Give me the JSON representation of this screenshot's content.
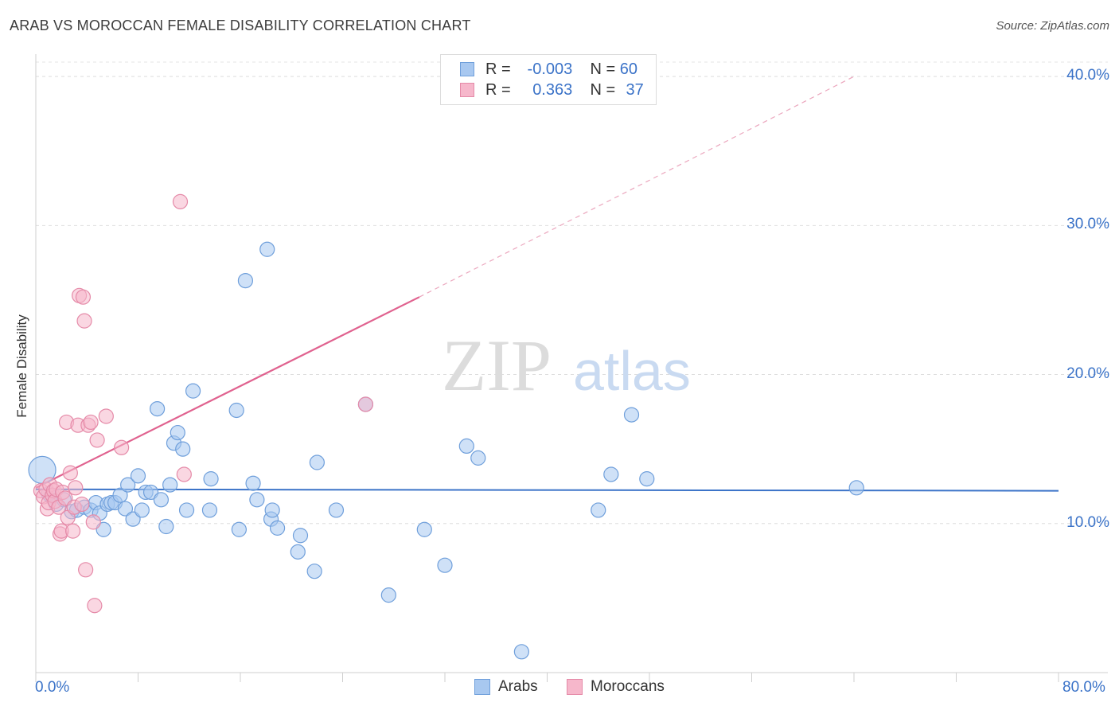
{
  "title": "ARAB VS MOROCCAN FEMALE DISABILITY CORRELATION CHART",
  "source": "Source: ZipAtlas.com",
  "watermark": {
    "zip": "ZIP",
    "atlas": "atlas"
  },
  "legend": {
    "rows": [
      {
        "r_label": "R =",
        "r_value": "-0.003",
        "n_label": "N =",
        "n_value": "60",
        "color": "#a8c8f0",
        "border": "#6f9fdb"
      },
      {
        "r_label": "R =",
        "r_value": "0.363",
        "n_label": "N =",
        "n_value": "37",
        "color": "#f6b7cb",
        "border": "#e58aa8"
      }
    ]
  },
  "bottom_legend": [
    {
      "label": "Arabs",
      "color": "#a8c8f0",
      "border": "#6f9fdb"
    },
    {
      "label": "Moroccans",
      "color": "#f6b7cb",
      "border": "#e58aa8"
    }
  ],
  "chart_data": {
    "type": "scatter",
    "title": "ARAB VS MOROCCAN FEMALE DISABILITY CORRELATION CHART",
    "xlabel": "",
    "ylabel": "Female Disability",
    "xlim": [
      0,
      80
    ],
    "ylim": [
      0,
      41.5
    ],
    "x_tick_labels": [
      "0.0%",
      "80.0%"
    ],
    "y_ticks": [
      10,
      20,
      30,
      40
    ],
    "y_tick_labels": [
      "10.0%",
      "20.0%",
      "30.0%",
      "40.0%"
    ],
    "grid": true,
    "colors": {
      "arabs": "#3b73c8",
      "moroccans": "#e0628f"
    },
    "series": [
      {
        "name": "Arabs",
        "fill": "#a8c8f0",
        "stroke": "#6f9fdb",
        "points": [
          [
            0.5,
            13.6
          ],
          [
            1.2,
            11.8
          ],
          [
            1.6,
            11.3
          ],
          [
            2.2,
            11.6
          ],
          [
            2.8,
            10.8
          ],
          [
            3.2,
            10.9
          ],
          [
            3.8,
            11.1
          ],
          [
            4.3,
            10.9
          ],
          [
            4.7,
            11.4
          ],
          [
            5.0,
            10.7
          ],
          [
            5.3,
            9.6
          ],
          [
            5.6,
            11.3
          ],
          [
            5.9,
            11.4
          ],
          [
            6.2,
            11.4
          ],
          [
            6.6,
            11.9
          ],
          [
            7.0,
            11.0
          ],
          [
            7.2,
            12.6
          ],
          [
            7.6,
            10.3
          ],
          [
            8.0,
            13.2
          ],
          [
            8.3,
            10.9
          ],
          [
            8.6,
            12.1
          ],
          [
            9.0,
            12.1
          ],
          [
            9.5,
            17.7
          ],
          [
            9.8,
            11.6
          ],
          [
            10.2,
            9.8
          ],
          [
            10.5,
            12.6
          ],
          [
            10.8,
            15.4
          ],
          [
            11.1,
            16.1
          ],
          [
            11.5,
            15.0
          ],
          [
            11.8,
            10.9
          ],
          [
            12.3,
            18.9
          ],
          [
            13.6,
            10.9
          ],
          [
            13.7,
            13.0
          ],
          [
            15.7,
            17.6
          ],
          [
            15.9,
            9.6
          ],
          [
            16.4,
            26.3
          ],
          [
            17.0,
            12.7
          ],
          [
            17.3,
            11.6
          ],
          [
            18.1,
            28.4
          ],
          [
            18.4,
            10.3
          ],
          [
            18.5,
            10.9
          ],
          [
            18.9,
            9.7
          ],
          [
            20.7,
            9.2
          ],
          [
            20.5,
            8.1
          ],
          [
            21.8,
            6.8
          ],
          [
            22.0,
            14.1
          ],
          [
            23.5,
            10.9
          ],
          [
            25.8,
            18.0
          ],
          [
            27.6,
            5.2
          ],
          [
            30.4,
            9.6
          ],
          [
            32.0,
            7.2
          ],
          [
            33.7,
            15.2
          ],
          [
            34.6,
            14.4
          ],
          [
            38.0,
            1.4
          ],
          [
            44.0,
            10.9
          ],
          [
            45.0,
            13.3
          ],
          [
            46.6,
            17.3
          ],
          [
            47.8,
            13.0
          ],
          [
            64.2,
            12.4
          ],
          [
            1.0,
            12.0
          ]
        ],
        "trend": {
          "x0": 0,
          "y0": 12.3,
          "x1": 80,
          "y1": 12.2
        }
      },
      {
        "name": "Moroccans",
        "fill": "#f6b7cb",
        "stroke": "#e58aa8",
        "points": [
          [
            0.4,
            12.2
          ],
          [
            0.6,
            11.8
          ],
          [
            0.8,
            12.3
          ],
          [
            0.9,
            11.0
          ],
          [
            1.0,
            11.4
          ],
          [
            1.1,
            12.6
          ],
          [
            1.3,
            11.9
          ],
          [
            1.4,
            12.2
          ],
          [
            1.5,
            11.5
          ],
          [
            1.6,
            12.3
          ],
          [
            1.8,
            11.1
          ],
          [
            1.9,
            9.3
          ],
          [
            2.0,
            9.5
          ],
          [
            2.1,
            12.1
          ],
          [
            2.3,
            11.7
          ],
          [
            2.4,
            16.8
          ],
          [
            2.5,
            10.4
          ],
          [
            2.7,
            13.4
          ],
          [
            2.9,
            9.5
          ],
          [
            3.0,
            11.1
          ],
          [
            3.1,
            12.4
          ],
          [
            3.3,
            16.6
          ],
          [
            3.4,
            25.3
          ],
          [
            3.6,
            11.3
          ],
          [
            3.7,
            25.2
          ],
          [
            3.8,
            23.6
          ],
          [
            3.9,
            6.9
          ],
          [
            4.1,
            16.6
          ],
          [
            4.3,
            16.8
          ],
          [
            4.5,
            10.1
          ],
          [
            4.6,
            4.5
          ],
          [
            4.8,
            15.6
          ],
          [
            5.5,
            17.2
          ],
          [
            6.7,
            15.1
          ],
          [
            11.3,
            31.6
          ],
          [
            11.6,
            13.3
          ],
          [
            25.8,
            18.0
          ]
        ],
        "trend": {
          "x0": 0,
          "y0": 12.4,
          "x1": 30,
          "y1": 25.2,
          "dash_to_x": 64,
          "dash_to_y": 40.0
        }
      }
    ]
  }
}
